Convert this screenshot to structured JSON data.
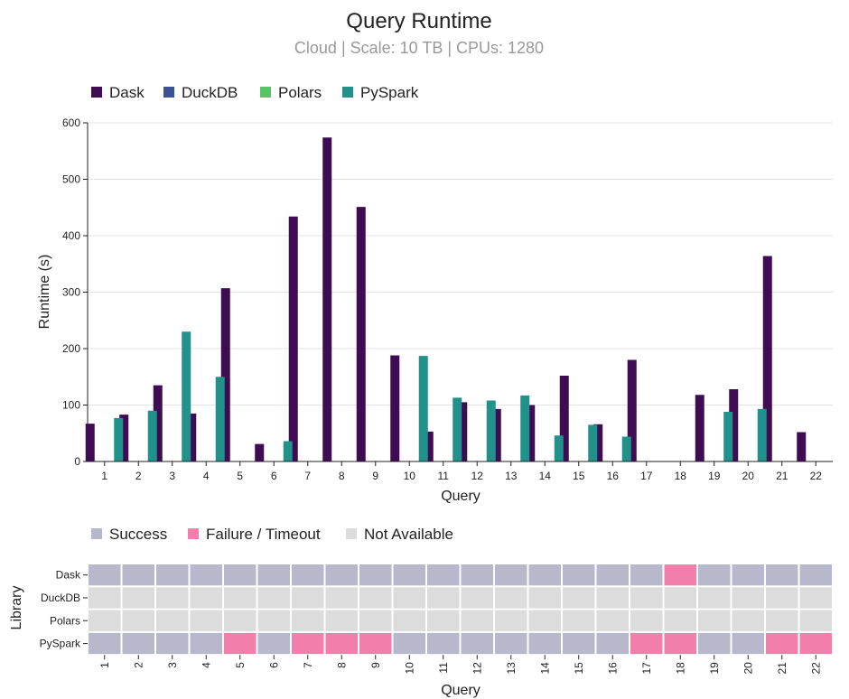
{
  "chart_data": [
    {
      "type": "bar",
      "title": "Query Runtime",
      "subtitle": "Cloud | Scale: 10 TB | CPUs: 1280",
      "xlabel": "Query",
      "ylabel": "Runtime (s)",
      "ylim": [
        0,
        600
      ],
      "yticks": [
        0,
        100,
        200,
        300,
        400,
        500,
        600
      ],
      "grid": true,
      "legend_placement": "top-left",
      "categories": [
        "1",
        "2",
        "3",
        "4",
        "5",
        "6",
        "7",
        "8",
        "9",
        "10",
        "11",
        "12",
        "13",
        "14",
        "15",
        "16",
        "17",
        "18",
        "19",
        "20",
        "21",
        "22"
      ],
      "series": [
        {
          "name": "Dask",
          "color": "#3f0b52",
          "values": [
            67,
            83,
            135,
            85,
            307,
            31,
            434,
            574,
            451,
            188,
            53,
            105,
            93,
            100,
            152,
            66,
            180,
            null,
            118,
            128,
            364,
            52
          ]
        },
        {
          "name": "DuckDB",
          "color": "#3b5394",
          "values": [
            null,
            null,
            null,
            null,
            null,
            null,
            null,
            null,
            null,
            null,
            null,
            null,
            null,
            null,
            null,
            null,
            null,
            null,
            null,
            null,
            null,
            null
          ]
        },
        {
          "name": "Polars",
          "color": "#56c566",
          "values": [
            null,
            null,
            null,
            null,
            null,
            null,
            null,
            null,
            null,
            null,
            null,
            null,
            null,
            null,
            null,
            null,
            null,
            null,
            null,
            null,
            null,
            null
          ]
        },
        {
          "name": "PySpark",
          "color": "#21918c",
          "values": [
            77,
            90,
            230,
            150,
            null,
            36,
            null,
            null,
            null,
            187,
            113,
            108,
            117,
            46,
            65,
            44,
            null,
            null,
            88,
            93,
            null,
            null
          ]
        }
      ]
    },
    {
      "type": "heatmap",
      "xlabel": "Query",
      "ylabel": "Library",
      "legend_placement": "top-left",
      "categories": [
        "1",
        "2",
        "3",
        "4",
        "5",
        "6",
        "7",
        "8",
        "9",
        "10",
        "11",
        "12",
        "13",
        "14",
        "15",
        "16",
        "17",
        "18",
        "19",
        "20",
        "21",
        "22"
      ],
      "rows": [
        "Dask",
        "DuckDB",
        "Polars",
        "PySpark"
      ],
      "legend": [
        {
          "key": "S",
          "label": "Success",
          "color": "#b8b8cc"
        },
        {
          "key": "F",
          "label": "Failure / Timeout",
          "color": "#f27fab"
        },
        {
          "key": "N",
          "label": "Not Available",
          "color": "#dcdcdc"
        }
      ],
      "status": [
        [
          "S",
          "S",
          "S",
          "S",
          "S",
          "S",
          "S",
          "S",
          "S",
          "S",
          "S",
          "S",
          "S",
          "S",
          "S",
          "S",
          "S",
          "F",
          "S",
          "S",
          "S",
          "S"
        ],
        [
          "N",
          "N",
          "N",
          "N",
          "N",
          "N",
          "N",
          "N",
          "N",
          "N",
          "N",
          "N",
          "N",
          "N",
          "N",
          "N",
          "N",
          "N",
          "N",
          "N",
          "N",
          "N"
        ],
        [
          "N",
          "N",
          "N",
          "N",
          "N",
          "N",
          "N",
          "N",
          "N",
          "N",
          "N",
          "N",
          "N",
          "N",
          "N",
          "N",
          "N",
          "N",
          "N",
          "N",
          "N",
          "N"
        ],
        [
          "S",
          "S",
          "S",
          "S",
          "F",
          "S",
          "F",
          "F",
          "F",
          "S",
          "S",
          "S",
          "S",
          "S",
          "S",
          "S",
          "F",
          "F",
          "S",
          "S",
          "F",
          "F"
        ]
      ]
    }
  ]
}
